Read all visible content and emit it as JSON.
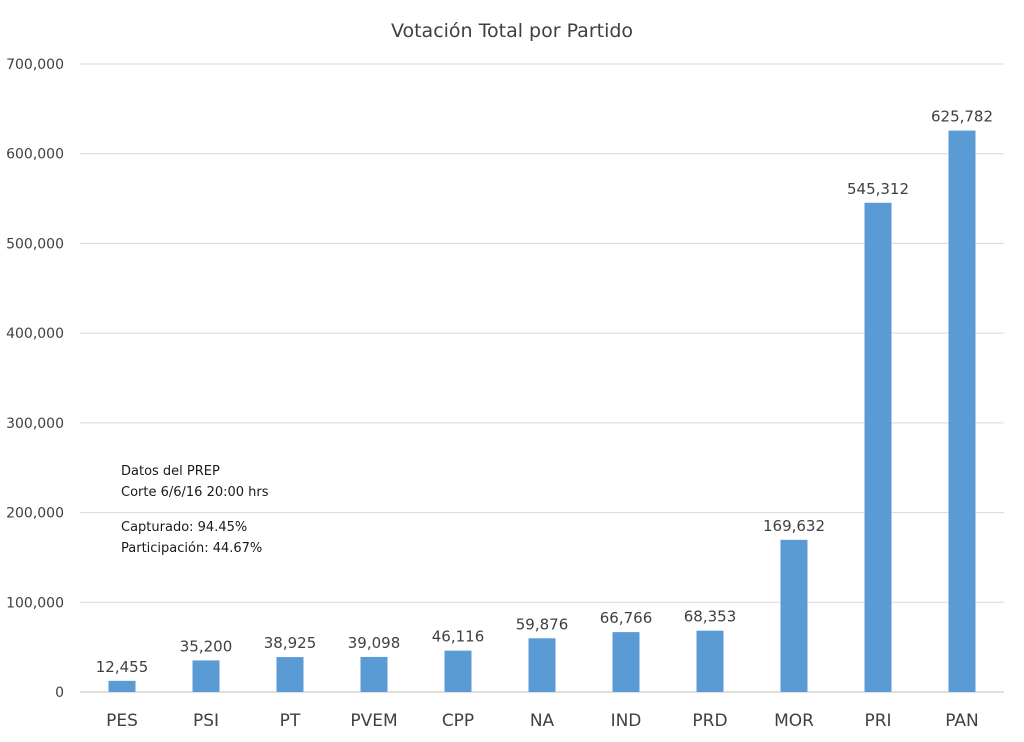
{
  "chart_data": {
    "type": "bar",
    "title": "Votación Total por Partido",
    "xlabel": "",
    "ylabel": "",
    "categories": [
      "PES",
      "PSI",
      "PT",
      "PVEM",
      "CPP",
      "NA",
      "IND",
      "PRD",
      "MOR",
      "PRI",
      "PAN"
    ],
    "values": [
      12455,
      35200,
      38925,
      39098,
      46116,
      59876,
      66766,
      68353,
      169632,
      545312,
      625782
    ],
    "data_labels": [
      "12,455",
      "35,200",
      "38,925",
      "39,098",
      "46,116",
      "59,876",
      "66,766",
      "68,353",
      "169,632",
      "545,312",
      "625,782"
    ],
    "ylim": [
      0,
      700000
    ],
    "yticks": [
      0,
      100000,
      200000,
      300000,
      400000,
      500000,
      600000,
      700000
    ],
    "ytick_labels": [
      "0",
      "100,000",
      "200,000",
      "300,000",
      "400,000",
      "500,000",
      "600,000",
      "700,000"
    ],
    "grid": true,
    "bar_color": "#5b9bd5"
  },
  "annotation": {
    "line1": "Datos del PREP",
    "line2": "Corte 6/6/16 20:00 hrs",
    "line3": "Capturado: 94.45%",
    "line4": "Participación: 44.67%"
  }
}
